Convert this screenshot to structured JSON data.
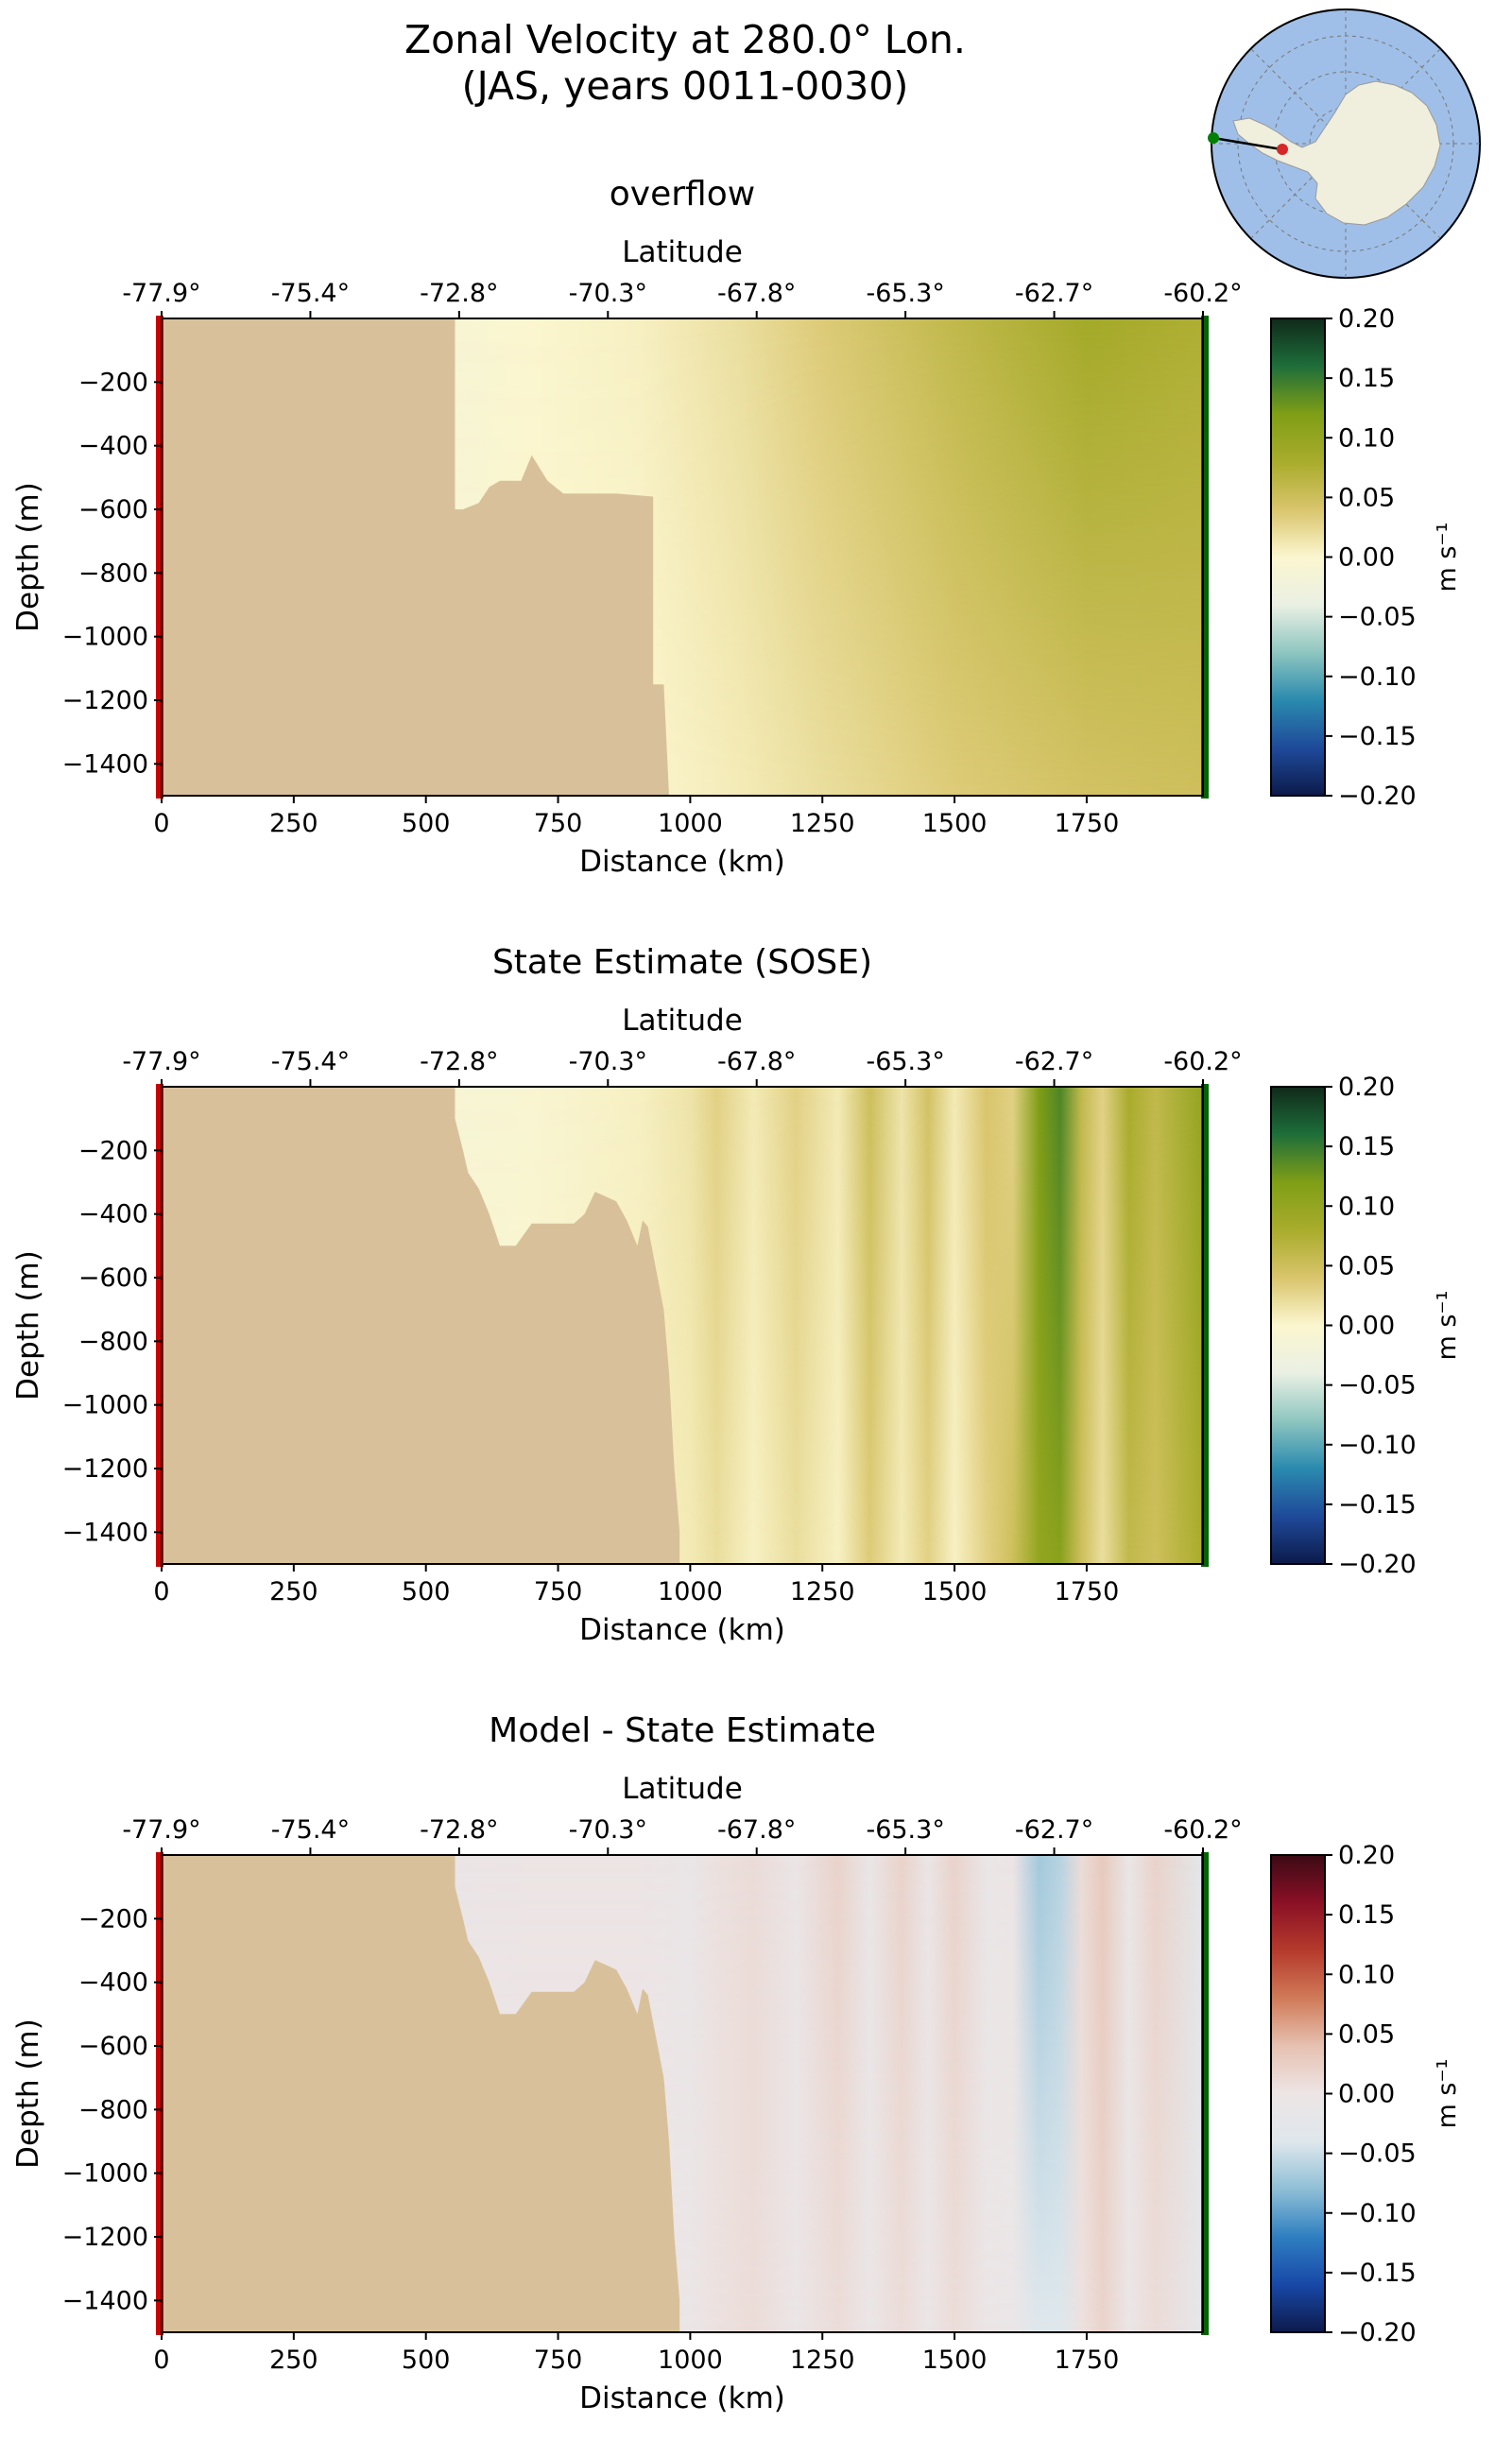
{
  "figure": {
    "title_line1": "Zonal Velocity at 280.0° Lon.",
    "title_line2": "(JAS, years 0011-0030)"
  },
  "inset_map": {
    "description_icon": "antarctica-map-icon",
    "transect_start_color": "#008000",
    "transect_end_color": "#d62728",
    "ocean_color": "#9fbfe8",
    "land_color": "#f0eedc"
  },
  "colors": {
    "land_mask": "#d8c19a",
    "start_marker": "#cc0000",
    "end_marker": "#006400",
    "velocity_cmap": [
      "#0c1a4a",
      "#1f4a9a",
      "#2a8aae",
      "#8ec6c0",
      "#eaf0e4",
      "#fbf6cf",
      "#d9c56c",
      "#a9ac2c",
      "#7f9e16",
      "#1e6e3a",
      "#10291a"
    ],
    "diff_cmap": [
      "#0d1a4a",
      "#1848a8",
      "#2f7fc1",
      "#8fbfd6",
      "#dfe7ec",
      "#ede5e5",
      "#e6c1b1",
      "#d07a58",
      "#b53a2c",
      "#8a1026",
      "#3b0a14"
    ]
  },
  "chart_data": [
    {
      "type": "heatmap",
      "title": "overflow",
      "xlabel": "Distance (km)",
      "ylabel": "Depth (m)",
      "top_axis_label": "Latitude",
      "top_ticks": [
        "-77.9°",
        "-75.4°",
        "-72.8°",
        "-70.3°",
        "-67.8°",
        "-65.3°",
        "-62.7°",
        "-60.2°"
      ],
      "xlim": [
        0,
        1970
      ],
      "ylim": [
        -1500,
        0
      ],
      "xticks": [
        0,
        250,
        500,
        750,
        1000,
        1250,
        1500,
        1750
      ],
      "yticks": [
        -200,
        -400,
        -600,
        -800,
        -1000,
        -1200,
        -1400
      ],
      "colorbar_label": "m s⁻¹",
      "colorbar_ticks": [
        "0.20",
        "0.15",
        "0.10",
        "0.05",
        "0.00",
        "−0.05",
        "−0.10",
        "−0.15",
        "−0.20"
      ],
      "clim": [
        -0.2,
        0.2
      ],
      "cmap": "velocity",
      "field_profile": {
        "distance_km": [
          560,
          700,
          900,
          1000,
          1100,
          1250,
          1500,
          1750,
          1970
        ],
        "velocity_m_s": [
          -0.01,
          0.0,
          0.005,
          0.012,
          0.02,
          0.035,
          0.06,
          0.085,
          0.075
        ],
        "deep_velocity_m_s": [
          -0.01,
          0.0,
          0.0,
          0.005,
          0.01,
          0.02,
          0.035,
          0.045,
          0.05
        ]
      },
      "bathymetry": {
        "distance_km": [
          0,
          555,
          555,
          570,
          600,
          620,
          640,
          680,
          700,
          730,
          760,
          800,
          860,
          930,
          930,
          950,
          960,
          960,
          1970
        ],
        "depth_m": [
          0,
          0,
          -600,
          -600,
          -580,
          -530,
          -510,
          -510,
          -430,
          -510,
          -550,
          -550,
          -550,
          -560,
          -1150,
          -1150,
          -1500,
          -1500,
          -1500
        ]
      }
    },
    {
      "type": "heatmap",
      "title": "State Estimate (SOSE)",
      "xlabel": "Distance (km)",
      "ylabel": "Depth (m)",
      "top_axis_label": "Latitude",
      "top_ticks": [
        "-77.9°",
        "-75.4°",
        "-72.8°",
        "-70.3°",
        "-67.8°",
        "-65.3°",
        "-62.7°",
        "-60.2°"
      ],
      "xlim": [
        0,
        1970
      ],
      "ylim": [
        -1500,
        0
      ],
      "xticks": [
        0,
        250,
        500,
        750,
        1000,
        1250,
        1500,
        1750
      ],
      "yticks": [
        -200,
        -400,
        -600,
        -800,
        -1000,
        -1200,
        -1400
      ],
      "colorbar_label": "m s⁻¹",
      "colorbar_ticks": [
        "0.20",
        "0.15",
        "0.10",
        "0.05",
        "0.00",
        "−0.05",
        "−0.10",
        "−0.15",
        "−0.20"
      ],
      "clim": [
        -0.2,
        0.2
      ],
      "cmap": "velocity",
      "field_profile": {
        "distance_km": [
          560,
          700,
          900,
          1000,
          1050,
          1120,
          1200,
          1280,
          1340,
          1400,
          1450,
          1500,
          1560,
          1610,
          1660,
          1700,
          1740,
          1780,
          1830,
          1880,
          1970
        ],
        "velocity_m_s": [
          -0.01,
          -0.005,
          0.005,
          0.015,
          0.03,
          0.01,
          0.03,
          0.01,
          0.05,
          0.015,
          0.045,
          0.01,
          0.04,
          0.03,
          0.12,
          0.14,
          0.06,
          0.03,
          0.08,
          0.06,
          0.1
        ],
        "deep_velocity_m_s": [
          -0.01,
          0.0,
          0.005,
          0.01,
          0.02,
          0.005,
          0.02,
          0.005,
          0.035,
          0.01,
          0.03,
          0.005,
          0.03,
          0.05,
          0.1,
          0.11,
          0.05,
          0.02,
          0.06,
          0.05,
          0.08
        ]
      },
      "bathymetry": {
        "distance_km": [
          0,
          555,
          555,
          570,
          580,
          600,
          620,
          640,
          670,
          700,
          730,
          780,
          800,
          820,
          860,
          880,
          900,
          910,
          920,
          950,
          960,
          970,
          980,
          980,
          1970
        ],
        "depth_m": [
          0,
          0,
          -100,
          -200,
          -270,
          -320,
          -400,
          -500,
          -500,
          -430,
          -430,
          -430,
          -400,
          -330,
          -360,
          -420,
          -500,
          -420,
          -440,
          -700,
          -900,
          -1200,
          -1400,
          -1500,
          -1500
        ]
      }
    },
    {
      "type": "heatmap",
      "title": "Model - State Estimate",
      "xlabel": "Distance (km)",
      "ylabel": "Depth (m)",
      "top_axis_label": "Latitude",
      "top_ticks": [
        "-77.9°",
        "-75.4°",
        "-72.8°",
        "-70.3°",
        "-67.8°",
        "-65.3°",
        "-62.7°",
        "-60.2°"
      ],
      "xlim": [
        0,
        1970
      ],
      "ylim": [
        -1500,
        0
      ],
      "xticks": [
        0,
        250,
        500,
        750,
        1000,
        1250,
        1500,
        1750
      ],
      "yticks": [
        -200,
        -400,
        -600,
        -800,
        -1000,
        -1200,
        -1400
      ],
      "colorbar_label": "m s⁻¹",
      "colorbar_ticks": [
        "0.20",
        "0.15",
        "0.10",
        "0.05",
        "0.00",
        "−0.05",
        "−0.10",
        "−0.15",
        "−0.20"
      ],
      "clim": [
        -0.2,
        0.2
      ],
      "cmap": "diff",
      "field_profile": {
        "distance_km": [
          560,
          700,
          900,
          1000,
          1050,
          1120,
          1200,
          1280,
          1340,
          1400,
          1450,
          1500,
          1560,
          1610,
          1660,
          1700,
          1740,
          1780,
          1830,
          1880,
          1970
        ],
        "velocity_m_s": [
          -0.005,
          0.0,
          0.0,
          -0.01,
          0.005,
          0.01,
          -0.005,
          0.02,
          -0.01,
          0.02,
          -0.005,
          0.02,
          -0.01,
          0.0,
          -0.07,
          -0.06,
          0.01,
          0.03,
          -0.01,
          0.02,
          -0.03
        ],
        "deep_velocity_m_s": [
          -0.005,
          0.0,
          0.0,
          -0.005,
          0.005,
          0.01,
          -0.005,
          0.01,
          -0.005,
          0.01,
          -0.005,
          0.01,
          -0.005,
          -0.01,
          -0.04,
          -0.04,
          0.005,
          0.02,
          -0.005,
          0.01,
          -0.02
        ]
      },
      "bathymetry": {
        "distance_km": [
          0,
          555,
          555,
          570,
          580,
          600,
          620,
          640,
          670,
          700,
          730,
          780,
          800,
          820,
          860,
          880,
          900,
          910,
          920,
          950,
          960,
          970,
          980,
          980,
          1970
        ],
        "depth_m": [
          0,
          0,
          -100,
          -200,
          -270,
          -320,
          -400,
          -500,
          -500,
          -430,
          -430,
          -430,
          -400,
          -330,
          -360,
          -420,
          -500,
          -420,
          -440,
          -700,
          -900,
          -1200,
          -1400,
          -1500,
          -1500
        ]
      }
    }
  ]
}
